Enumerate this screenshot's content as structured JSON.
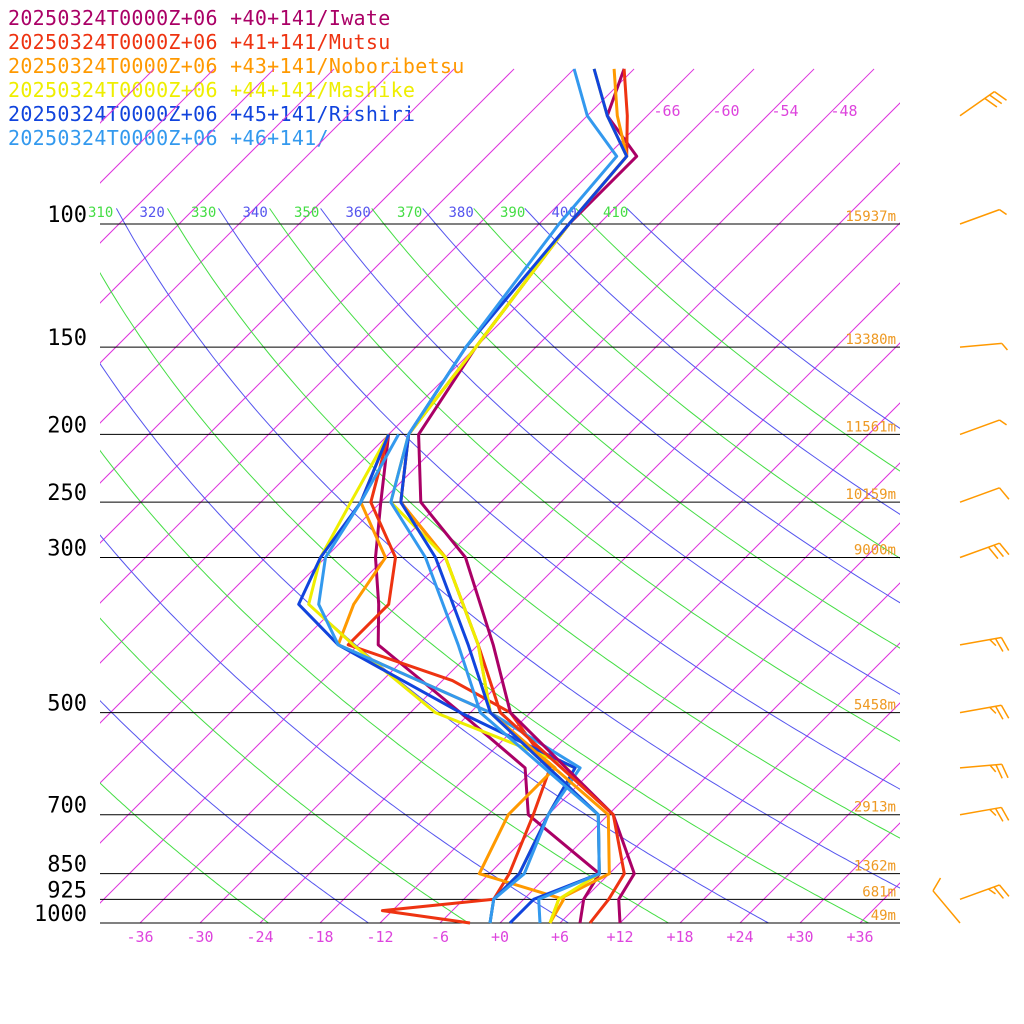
{
  "chart_data": {
    "type": "line",
    "subtype": "skew-t log-p sounding",
    "title": "",
    "xlabel": "",
    "ylabel": "",
    "legend_position": "top-left",
    "legend": [
      {
        "label": "20250324T0000Z+06 +40+141/Iwate",
        "color": "#aa0066"
      },
      {
        "label": "20250324T0000Z+06 +41+141/Mutsu",
        "color": "#ee3311"
      },
      {
        "label": "20250324T0000Z+06 +43+141/Noboribetsu",
        "color": "#ff9900"
      },
      {
        "label": "20250324T0000Z+06 +44+141/Mashike",
        "color": "#eeee00"
      },
      {
        "label": "20250324T0000Z+06 +45+141/Rishiri",
        "color": "#1144dd"
      },
      {
        "label": "20250324T0000Z+06 +46+141/",
        "color": "#3399ee"
      }
    ],
    "pressure_levels": [
      100,
      150,
      200,
      250,
      300,
      500,
      700,
      850,
      925,
      1000
    ],
    "pressure_tick_labels": [
      "100",
      "150",
      "200",
      "250",
      "300",
      "500",
      "700",
      "850",
      "925",
      "1000"
    ],
    "height_labels": [
      "15937m",
      "13380m",
      "11561m",
      "10159m",
      "9000m",
      "5458m",
      "2913m",
      "1362m",
      "681m",
      "49m"
    ],
    "temperature_ticks": [
      -36,
      -30,
      -24,
      -18,
      -12,
      -6,
      0,
      6,
      12,
      18,
      24,
      30,
      36
    ],
    "temperature_tick_labels": [
      "-36",
      "-30",
      "-24",
      "-18",
      "-12",
      "-6",
      "+0",
      "+6",
      "+12",
      "+18",
      "+24",
      "+30",
      "+36"
    ],
    "upper_temperature_labels": [
      "-66",
      "-60",
      "-54",
      "-48"
    ],
    "theta_labels": [
      "310",
      "320",
      "330",
      "340",
      "350",
      "360",
      "370",
      "380",
      "390",
      "400",
      "410"
    ],
    "theta_label_colors": [
      "#44dd44",
      "#5555ee"
    ],
    "isotherm_color": "#dd33dd",
    "x_range_at_1000hPa": [
      -40,
      40
    ],
    "pressure_range_hPa": [
      1000,
      100
    ],
    "series": [
      {
        "name": "20250324T0000Z+06 +40+141/Iwate",
        "color": "#aa0066",
        "stroke_width": 3,
        "temperature": [
          [
            1000,
            12
          ],
          [
            925,
            9.5
          ],
          [
            850,
            8.5
          ],
          [
            700,
            0.5
          ],
          [
            500,
            -20
          ],
          [
            400,
            -28.5
          ],
          [
            300,
            -40
          ],
          [
            250,
            -50
          ],
          [
            200,
            -57
          ],
          [
            150,
            -60
          ],
          [
            100,
            -63
          ],
          [
            80,
            -63
          ],
          [
            70,
            -70
          ],
          [
            60,
            -73
          ]
        ],
        "dewpoint": [
          [
            1000,
            8
          ],
          [
            925,
            6
          ],
          [
            850,
            5
          ],
          [
            700,
            -8
          ],
          [
            600,
            -13
          ],
          [
            500,
            -25
          ],
          [
            400,
            -40
          ],
          [
            350,
            -44
          ],
          [
            300,
            -49
          ],
          [
            250,
            -54
          ],
          [
            200,
            -60
          ]
        ]
      },
      {
        "name": "20250324T0000Z+06 +41+141/Mutsu",
        "color": "#ee3311",
        "stroke_width": 3,
        "temperature": [
          [
            1000,
            9
          ],
          [
            925,
            8.5
          ],
          [
            850,
            7.5
          ],
          [
            700,
            0.5
          ],
          [
            500,
            -21
          ],
          [
            400,
            -30
          ],
          [
            300,
            -42
          ],
          [
            250,
            -52
          ],
          [
            200,
            -58
          ],
          [
            150,
            -60
          ],
          [
            100,
            -63
          ],
          [
            80,
            -64
          ],
          [
            70,
            -68
          ],
          [
            60,
            -73
          ]
        ],
        "dewpoint": [
          [
            1000,
            -3
          ],
          [
            960,
            -13
          ],
          [
            925,
            -3
          ],
          [
            850,
            -4
          ],
          [
            700,
            -7.5
          ],
          [
            600,
            -10.5
          ],
          [
            500,
            -20
          ],
          [
            450,
            -29
          ],
          [
            400,
            -43
          ],
          [
            350,
            -43
          ],
          [
            300,
            -47
          ],
          [
            250,
            -55
          ],
          [
            200,
            -60
          ]
        ]
      },
      {
        "name": "20250324T0000Z+06 +43+141/Noboribetsu",
        "color": "#ff9900",
        "stroke_width": 3,
        "temperature": [
          [
            1000,
            5
          ],
          [
            925,
            3.5
          ],
          [
            850,
            6
          ],
          [
            700,
            0
          ],
          [
            500,
            -22
          ],
          [
            400,
            -30
          ],
          [
            300,
            -42
          ],
          [
            250,
            -52
          ],
          [
            200,
            -58
          ],
          [
            150,
            -60
          ],
          [
            100,
            -63
          ],
          [
            80,
            -64
          ],
          [
            70,
            -69
          ],
          [
            60,
            -74
          ]
        ],
        "dewpoint": [
          [
            1000,
            5
          ],
          [
            925,
            4
          ],
          [
            850,
            -7
          ],
          [
            700,
            -10
          ],
          [
            600,
            -10
          ],
          [
            500,
            -22
          ],
          [
            400,
            -44
          ],
          [
            350,
            -46.5
          ],
          [
            300,
            -48
          ],
          [
            250,
            -56
          ],
          [
            200,
            -60
          ]
        ]
      },
      {
        "name": "20250324T0000Z+06 +44+141/Mashike",
        "color": "#eeee00",
        "stroke_width": 3,
        "temperature": [
          [
            1000,
            5
          ],
          [
            925,
            3.5
          ],
          [
            850,
            5
          ],
          [
            700,
            -1
          ],
          [
            500,
            -22
          ],
          [
            400,
            -30
          ],
          [
            300,
            -42
          ],
          [
            250,
            -53
          ],
          [
            200,
            -58
          ],
          [
            150,
            -60
          ],
          [
            100,
            -63
          ],
          [
            80,
            -64
          ],
          [
            70,
            -70
          ],
          [
            60,
            -76
          ]
        ],
        "dewpoint": [
          [
            1000,
            -1
          ],
          [
            925,
            -3
          ],
          [
            850,
            -3
          ],
          [
            700,
            -6
          ],
          [
            600,
            -8
          ],
          [
            500,
            -27.5
          ],
          [
            400,
            -42.5
          ],
          [
            350,
            -51
          ],
          [
            300,
            -54.5
          ],
          [
            250,
            -57
          ],
          [
            200,
            -60
          ]
        ]
      },
      {
        "name": "20250324T0000Z+06 +45+141/Rishiri",
        "color": "#1144dd",
        "stroke_width": 3,
        "temperature": [
          [
            1000,
            1
          ],
          [
            925,
            1
          ],
          [
            850,
            5
          ],
          [
            700,
            -1
          ],
          [
            500,
            -22
          ],
          [
            400,
            -31
          ],
          [
            300,
            -43
          ],
          [
            250,
            -52
          ],
          [
            200,
            -58
          ],
          [
            150,
            -61
          ],
          [
            100,
            -63
          ],
          [
            80,
            -64
          ],
          [
            70,
            -70
          ],
          [
            60,
            -76
          ]
        ],
        "dewpoint": [
          [
            1000,
            -1
          ],
          [
            925,
            -3
          ],
          [
            850,
            -3
          ],
          [
            700,
            -6
          ],
          [
            600,
            -8
          ],
          [
            500,
            -25
          ],
          [
            400,
            -44
          ],
          [
            350,
            -52
          ],
          [
            300,
            -54.5
          ],
          [
            250,
            -56
          ],
          [
            200,
            -60
          ]
        ]
      },
      {
        "name": "20250324T0000Z+06 +46+141/",
        "color": "#3399ee",
        "stroke_width": 3,
        "temperature": [
          [
            1000,
            4
          ],
          [
            925,
            1.5
          ],
          [
            850,
            5
          ],
          [
            700,
            -1
          ],
          [
            500,
            -23
          ],
          [
            400,
            -32
          ],
          [
            300,
            -44
          ],
          [
            250,
            -53
          ],
          [
            200,
            -58
          ],
          [
            150,
            -61
          ],
          [
            100,
            -64
          ],
          [
            80,
            -65
          ],
          [
            70,
            -72
          ],
          [
            60,
            -78
          ]
        ],
        "dewpoint": [
          [
            1000,
            -1
          ],
          [
            925,
            -3
          ],
          [
            850,
            -2.5
          ],
          [
            700,
            -6
          ],
          [
            600,
            -7.5
          ],
          [
            500,
            -22
          ],
          [
            400,
            -44
          ],
          [
            350,
            -50
          ],
          [
            300,
            -54
          ],
          [
            250,
            -56
          ],
          [
            200,
            -59
          ]
        ]
      }
    ],
    "wind_barbs_color": "#ff9900",
    "wind_barbs": [
      {
        "pressure": 1000,
        "speed_kt": 10,
        "direction_deg": 140
      },
      {
        "pressure": 925,
        "speed_kt": 25,
        "direction_deg": 250
      },
      {
        "pressure": 700,
        "speed_kt": 25,
        "direction_deg": 260
      },
      {
        "pressure": 600,
        "speed_kt": 25,
        "direction_deg": 265
      },
      {
        "pressure": 500,
        "speed_kt": 25,
        "direction_deg": 260
      },
      {
        "pressure": 400,
        "speed_kt": 25,
        "direction_deg": 260
      },
      {
        "pressure": 300,
        "speed_kt": 30,
        "direction_deg": 250
      },
      {
        "pressure": 250,
        "speed_kt": 10,
        "direction_deg": 250
      },
      {
        "pressure": 200,
        "speed_kt": 5,
        "direction_deg": 250
      },
      {
        "pressure": 150,
        "speed_kt": 5,
        "direction_deg": 265
      },
      {
        "pressure": 100,
        "speed_kt": 5,
        "direction_deg": 250
      },
      {
        "pressure": 70,
        "speed_kt": 30,
        "direction_deg": 235
      }
    ]
  }
}
